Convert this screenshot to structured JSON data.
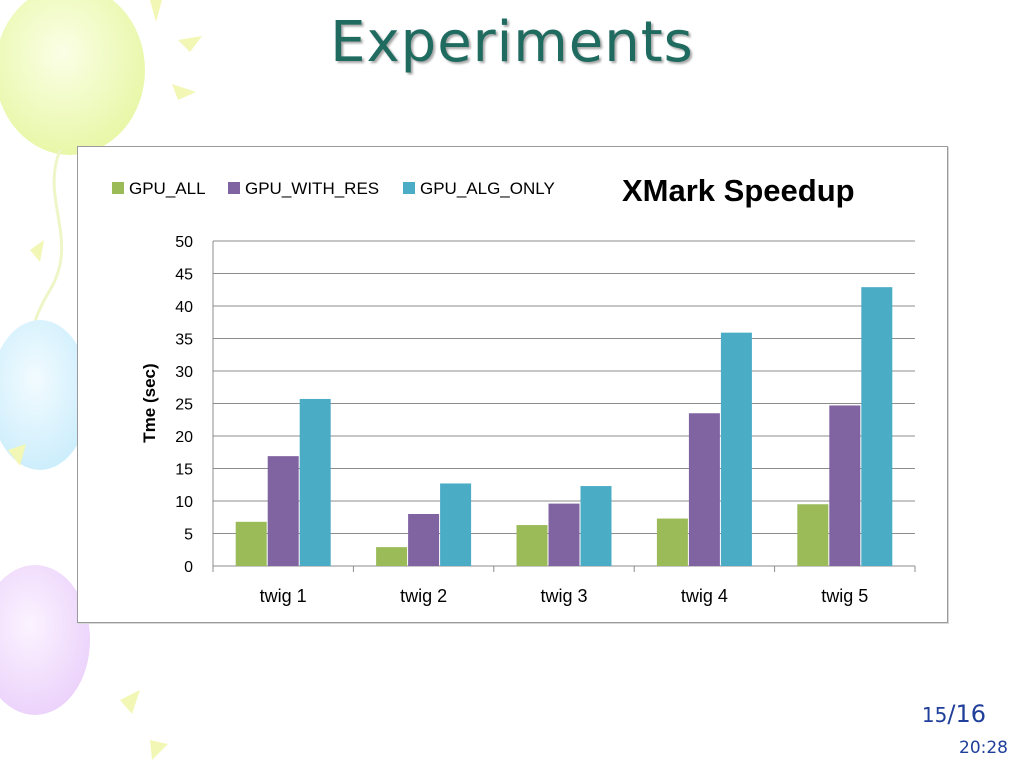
{
  "slide": {
    "title": "Experiments",
    "page_current": "15",
    "page_separator": "/",
    "page_total": "16",
    "time": "20:28"
  },
  "chart_data": {
    "type": "bar",
    "title": "XMark Speedup",
    "xlabel": "",
    "ylabel": "Tme (sec)",
    "categories": [
      "twig 1",
      "twig 2",
      "twig 3",
      "twig 4",
      "twig 5"
    ],
    "series": [
      {
        "name": "GPU_ALL",
        "color": "#9bbb59",
        "values": [
          6.8,
          2.9,
          6.3,
          7.3,
          9.5
        ]
      },
      {
        "name": "GPU_WITH_RES",
        "color": "#8064a2",
        "values": [
          16.9,
          8.0,
          9.6,
          23.5,
          24.7
        ]
      },
      {
        "name": "GPU_ALG_ONLY",
        "color": "#4bacc6",
        "values": [
          25.7,
          12.7,
          12.3,
          35.9,
          42.9
        ]
      }
    ],
    "ylim": [
      0,
      50
    ],
    "yticks": [
      0,
      5,
      10,
      15,
      20,
      25,
      30,
      35,
      40,
      45,
      50
    ],
    "grid": true,
    "legend_position": "top-left"
  }
}
